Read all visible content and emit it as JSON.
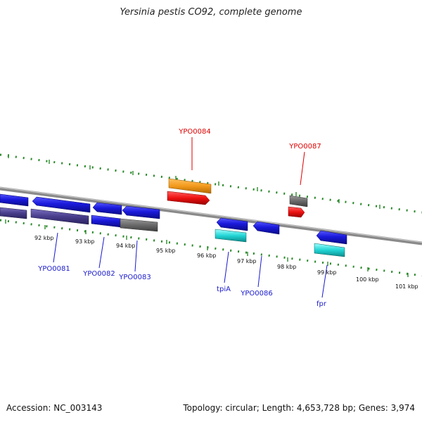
{
  "title": "Yersinia pestis CO92, complete genome",
  "footer": {
    "accession": "Accession: NC_003143",
    "stats": "Topology: circular; Length: 4,653,728 bp; Genes: 3,974"
  },
  "colors": {
    "backbone": "#888888",
    "tick": "#2a8a2a",
    "cds_blue": "#1a1adc",
    "dark_slate": "#483d8b",
    "grey": "#6a6a6a",
    "orange": "#f39a1c",
    "red": "#ee1111",
    "cyan": "#22d5d5",
    "label_red": "#dd0000",
    "label_blue": "#1a1acc"
  },
  "scale_labels": [
    "92 kbp",
    "93 kbp",
    "94 kbp",
    "95 kbp",
    "96 kbp",
    "97 kbp",
    "98 kbp",
    "99 kbp",
    "100 kbp",
    "101 kbp"
  ],
  "gene_labels": {
    "YPO0084": "YPO0084",
    "YPO0087": "YPO0087",
    "YPO0081": "YPO0081",
    "YPO0082": "YPO0082",
    "YPO0083": "YPO0083",
    "tpiA": "tpiA",
    "YPO0086": "YPO0086",
    "fpr": "fpr"
  }
}
